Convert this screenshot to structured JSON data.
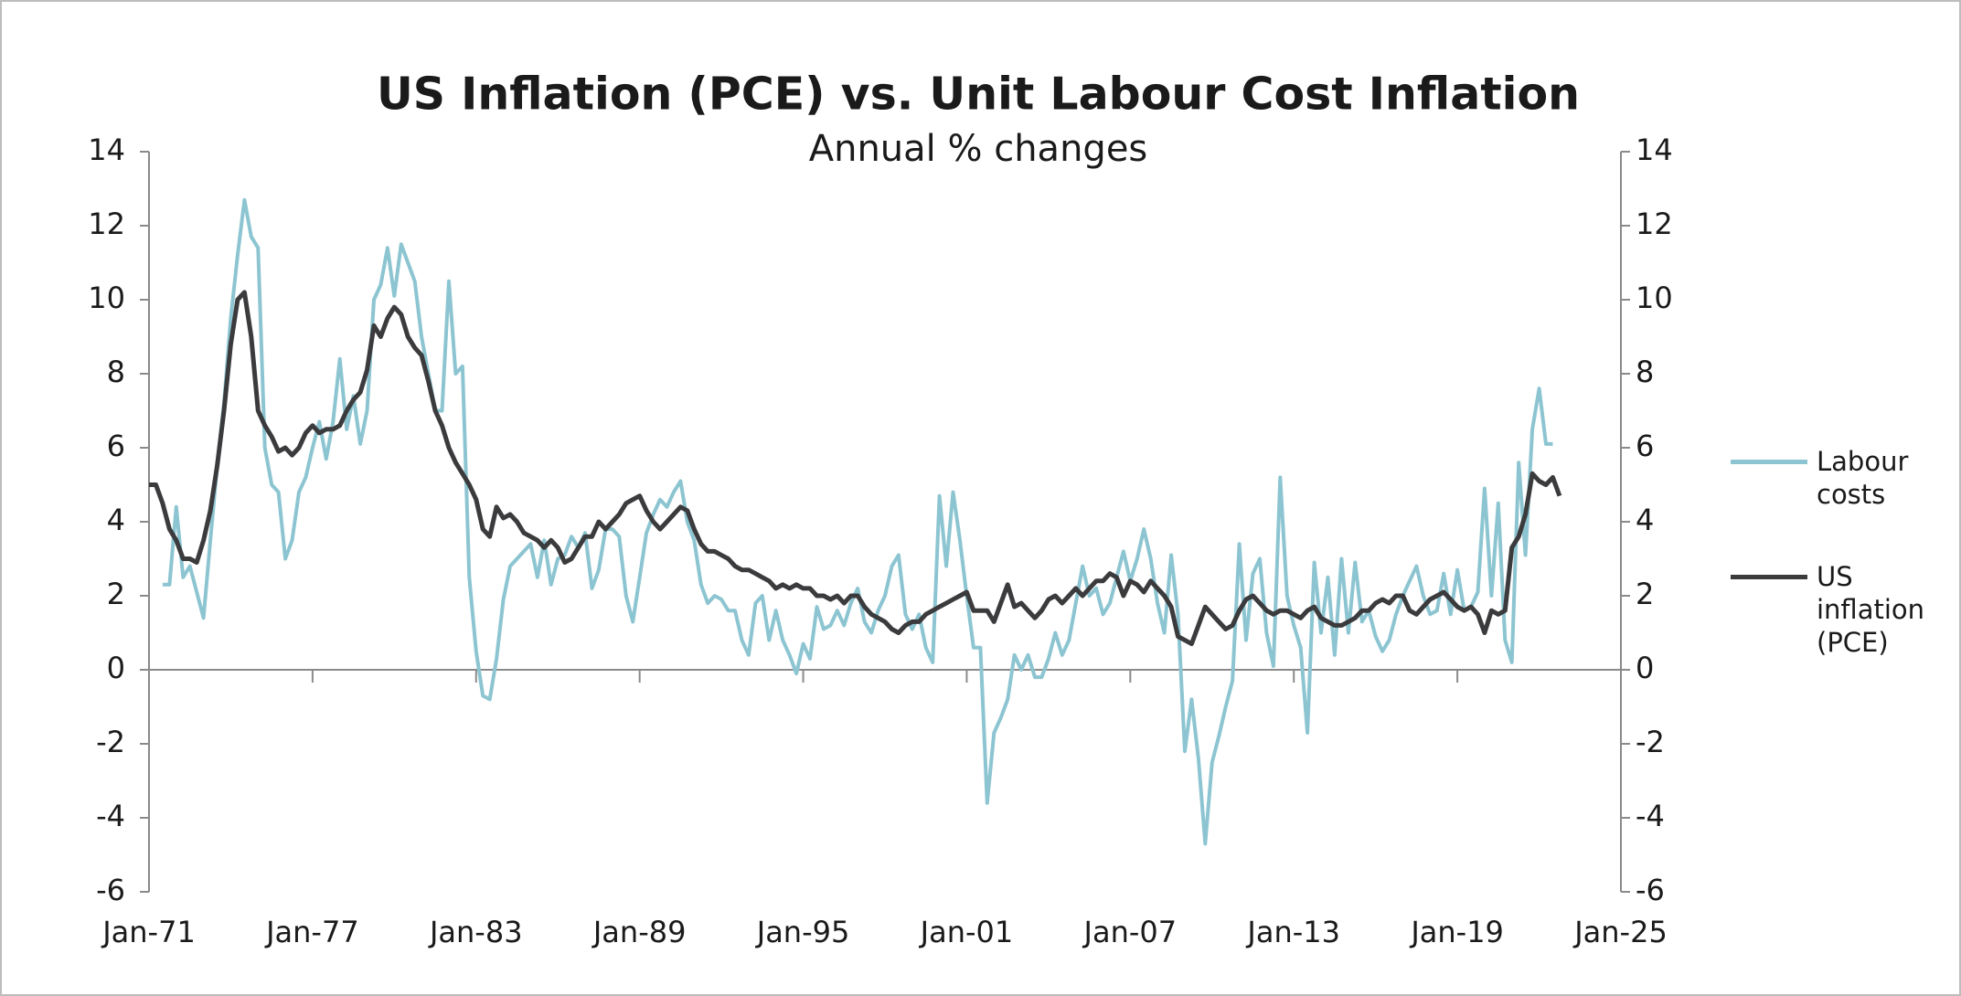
{
  "chart_data": {
    "type": "line",
    "title": "US Inflation (PCE) vs. Unit Labour Cost Inflation",
    "subtitle": "Annual % changes",
    "x": [
      "Jan-71",
      "Apr-71",
      "Jul-71",
      "Oct-71",
      "Jan-72",
      "Apr-72",
      "Jul-72",
      "Oct-72",
      "Jan-73",
      "Apr-73",
      "Jul-73",
      "Oct-73",
      "Jan-74",
      "Apr-74",
      "Jul-74",
      "Oct-74",
      "Jan-75",
      "Apr-75",
      "Jul-75",
      "Oct-75",
      "Jan-76",
      "Apr-76",
      "Jul-76",
      "Oct-76",
      "Jan-77",
      "Apr-77",
      "Jul-77",
      "Oct-77",
      "Jan-78",
      "Apr-78",
      "Jul-78",
      "Oct-78",
      "Jan-79",
      "Apr-79",
      "Jul-79",
      "Oct-79",
      "Jan-80",
      "Apr-80",
      "Jul-80",
      "Oct-80",
      "Jan-81",
      "Apr-81",
      "Jul-81",
      "Oct-81",
      "Jan-82",
      "Apr-82",
      "Jul-82",
      "Oct-82",
      "Jan-83",
      "Apr-83",
      "Jul-83",
      "Oct-83",
      "Jan-84",
      "Apr-84",
      "Jul-84",
      "Oct-84",
      "Jan-85",
      "Apr-85",
      "Jul-85",
      "Oct-85",
      "Jan-86",
      "Apr-86",
      "Jul-86",
      "Oct-86",
      "Jan-87",
      "Apr-87",
      "Jul-87",
      "Oct-87",
      "Jan-88",
      "Apr-88",
      "Jul-88",
      "Oct-88",
      "Jan-89",
      "Apr-89",
      "Jul-89",
      "Oct-89",
      "Jan-90",
      "Apr-90",
      "Jul-90",
      "Oct-90",
      "Jan-91",
      "Apr-91",
      "Jul-91",
      "Oct-91",
      "Jan-92",
      "Apr-92",
      "Jul-92",
      "Oct-92",
      "Jan-93",
      "Apr-93",
      "Jul-93",
      "Oct-93",
      "Jan-94",
      "Apr-94",
      "Jul-94",
      "Oct-94",
      "Jan-95",
      "Apr-95",
      "Jul-95",
      "Oct-95",
      "Jan-96",
      "Apr-96",
      "Jul-96",
      "Oct-96",
      "Jan-97",
      "Apr-97",
      "Jul-97",
      "Oct-97",
      "Jan-98",
      "Apr-98",
      "Jul-98",
      "Oct-98",
      "Jan-99",
      "Apr-99",
      "Jul-99",
      "Oct-99",
      "Jan-00",
      "Apr-00",
      "Jul-00",
      "Oct-00",
      "Jan-01",
      "Apr-01",
      "Jul-01",
      "Oct-01",
      "Jan-02",
      "Apr-02",
      "Jul-02",
      "Oct-02",
      "Jan-03",
      "Apr-03",
      "Jul-03",
      "Oct-03",
      "Jan-04",
      "Apr-04",
      "Jul-04",
      "Oct-04",
      "Jan-05",
      "Apr-05",
      "Jul-05",
      "Oct-05",
      "Jan-06",
      "Apr-06",
      "Jul-06",
      "Oct-06",
      "Jan-07",
      "Apr-07",
      "Jul-07",
      "Oct-07",
      "Jan-08",
      "Apr-08",
      "Jul-08",
      "Oct-08",
      "Jan-09",
      "Apr-09",
      "Jul-09",
      "Oct-09",
      "Jan-10",
      "Apr-10",
      "Jul-10",
      "Oct-10",
      "Jan-11",
      "Apr-11",
      "Jul-11",
      "Oct-11",
      "Jan-12",
      "Apr-12",
      "Jul-12",
      "Oct-12",
      "Jan-13",
      "Apr-13",
      "Jul-13",
      "Oct-13",
      "Jan-14",
      "Apr-14",
      "Jul-14",
      "Oct-14",
      "Jan-15",
      "Apr-15",
      "Jul-15",
      "Oct-15",
      "Jan-16",
      "Apr-16",
      "Jul-16",
      "Oct-16",
      "Jan-17",
      "Apr-17",
      "Jul-17",
      "Oct-17",
      "Jan-18",
      "Apr-18",
      "Jul-18",
      "Oct-18",
      "Jan-19",
      "Apr-19",
      "Jul-19",
      "Oct-19",
      "Jan-20",
      "Apr-20",
      "Jul-20",
      "Oct-20",
      "Jan-21",
      "Apr-21",
      "Jul-21",
      "Oct-21",
      "Jan-22",
      "Apr-22",
      "Jul-22",
      "Oct-22"
    ],
    "series": [
      {
        "name": "Labour costs",
        "color": "#8cc5d1",
        "values": [
          null,
          null,
          2.3,
          2.3,
          4.4,
          2.5,
          2.8,
          2.1,
          1.4,
          3.5,
          5.5,
          7.2,
          9.5,
          11.2,
          12.7,
          11.7,
          11.4,
          6.0,
          5.0,
          4.8,
          3.0,
          3.5,
          4.8,
          5.2,
          6.0,
          6.7,
          5.7,
          6.7,
          8.4,
          6.5,
          7.4,
          6.1,
          7.0,
          10.0,
          10.4,
          11.4,
          10.1,
          11.5,
          11.0,
          10.5,
          9.0,
          8.0,
          7.0,
          7.0,
          10.5,
          8.0,
          8.2,
          2.5,
          0.5,
          -0.7,
          -0.8,
          0.3,
          1.9,
          2.8,
          3.0,
          3.2,
          3.4,
          2.5,
          3.5,
          2.3,
          3.0,
          3.1,
          3.6,
          3.3,
          3.7,
          2.2,
          2.7,
          3.8,
          3.8,
          3.6,
          2.0,
          1.3,
          2.5,
          3.7,
          4.2,
          4.6,
          4.4,
          4.8,
          5.1,
          4.0,
          3.5,
          2.3,
          1.8,
          2.0,
          1.9,
          1.6,
          1.6,
          0.8,
          0.4,
          1.8,
          2.0,
          0.8,
          1.6,
          0.8,
          0.4,
          -0.1,
          0.7,
          0.3,
          1.7,
          1.1,
          1.2,
          1.6,
          1.2,
          1.8,
          2.2,
          1.3,
          1.0,
          1.6,
          2.0,
          2.8,
          3.1,
          1.5,
          1.1,
          1.5,
          0.6,
          0.2,
          4.7,
          2.8,
          4.8,
          3.5,
          2.0,
          0.6,
          0.6,
          -3.6,
          -1.7,
          -1.3,
          -0.8,
          0.4,
          0.0,
          0.4,
          -0.2,
          -0.2,
          0.3,
          1.0,
          0.4,
          0.8,
          1.8,
          2.8,
          2.0,
          2.2,
          1.5,
          1.8,
          2.5,
          3.2,
          2.4,
          3.0,
          3.8,
          3.0,
          1.8,
          1.0,
          3.1,
          1.5,
          -2.2,
          -0.8,
          -2.4,
          -4.7,
          -2.5,
          -1.8,
          -1.0,
          -0.3,
          3.4,
          0.8,
          2.6,
          3.0,
          1.0,
          0.1,
          5.2,
          2.0,
          1.2,
          0.6,
          -1.7,
          2.9,
          1.0,
          2.5,
          0.4,
          3.0,
          1.0,
          2.9,
          1.3,
          1.6,
          0.9,
          0.5,
          0.8,
          1.5,
          2.0,
          2.4,
          2.8,
          2.0,
          1.5,
          1.6,
          2.6,
          1.5,
          2.7,
          1.6,
          1.7,
          2.1,
          4.9,
          2.0,
          4.5,
          0.8,
          0.2,
          5.6,
          3.1,
          6.5,
          7.6,
          6.1,
          6.1,
          null
        ]
      },
      {
        "name": "US inflation (PCE)",
        "color": "#3b3b3d",
        "values": [
          5.0,
          5.0,
          4.5,
          3.8,
          3.5,
          3.0,
          3.0,
          2.9,
          3.5,
          4.3,
          5.5,
          7.0,
          8.8,
          10.0,
          10.2,
          9.0,
          7.0,
          6.6,
          6.3,
          5.9,
          6.0,
          5.8,
          6.0,
          6.4,
          6.6,
          6.4,
          6.5,
          6.5,
          6.6,
          7.0,
          7.3,
          7.5,
          8.1,
          9.3,
          9.0,
          9.5,
          9.8,
          9.6,
          9.0,
          8.7,
          8.5,
          7.8,
          7.0,
          6.6,
          6.0,
          5.6,
          5.3,
          5.0,
          4.6,
          3.8,
          3.6,
          4.4,
          4.1,
          4.2,
          4.0,
          3.7,
          3.6,
          3.5,
          3.3,
          3.5,
          3.3,
          2.9,
          3.0,
          3.3,
          3.6,
          3.6,
          4.0,
          3.8,
          4.0,
          4.2,
          4.5,
          4.6,
          4.7,
          4.3,
          4.0,
          3.8,
          4.0,
          4.2,
          4.4,
          4.3,
          3.8,
          3.4,
          3.2,
          3.2,
          3.1,
          3.0,
          2.8,
          2.7,
          2.7,
          2.6,
          2.5,
          2.4,
          2.2,
          2.3,
          2.2,
          2.3,
          2.2,
          2.2,
          2.0,
          2.0,
          1.9,
          2.0,
          1.8,
          2.0,
          2.0,
          1.7,
          1.5,
          1.4,
          1.3,
          1.1,
          1.0,
          1.2,
          1.3,
          1.3,
          1.5,
          1.6,
          1.7,
          1.8,
          1.9,
          2.0,
          2.1,
          1.6,
          1.6,
          1.6,
          1.3,
          1.8,
          2.3,
          1.7,
          1.8,
          1.6,
          1.4,
          1.6,
          1.9,
          2.0,
          1.8,
          2.0,
          2.2,
          2.0,
          2.2,
          2.4,
          2.4,
          2.6,
          2.5,
          2.0,
          2.4,
          2.3,
          2.1,
          2.4,
          2.2,
          2.0,
          1.7,
          0.9,
          0.8,
          0.7,
          1.2,
          1.7,
          1.5,
          1.3,
          1.1,
          1.2,
          1.6,
          1.9,
          2.0,
          1.8,
          1.6,
          1.5,
          1.6,
          1.6,
          1.5,
          1.4,
          1.6,
          1.7,
          1.4,
          1.3,
          1.2,
          1.2,
          1.3,
          1.4,
          1.6,
          1.6,
          1.8,
          1.9,
          1.8,
          2.0,
          2.0,
          1.6,
          1.5,
          1.7,
          1.9,
          2.0,
          2.1,
          1.9,
          1.7,
          1.6,
          1.7,
          1.5,
          1.0,
          1.6,
          1.5,
          1.6,
          3.3,
          3.6,
          4.2,
          5.3,
          5.1,
          5.0,
          5.2,
          4.7
        ]
      }
    ],
    "xlim": [
      "Jan-71",
      "Jan-25"
    ],
    "xticks": [
      "Jan-71",
      "Jan-77",
      "Jan-83",
      "Jan-89",
      "Jan-95",
      "Jan-01",
      "Jan-07",
      "Jan-13",
      "Jan-19",
      "Jan-25"
    ],
    "ylim": [
      -6,
      14
    ],
    "yticks": [
      -6,
      -4,
      -2,
      0,
      2,
      4,
      6,
      8,
      10,
      12,
      14
    ],
    "y2lim": [
      -6,
      14
    ],
    "y2ticks": [
      -6,
      -4,
      -2,
      0,
      2,
      4,
      6,
      8,
      10,
      12,
      14
    ],
    "grid": false,
    "legend": "right"
  }
}
